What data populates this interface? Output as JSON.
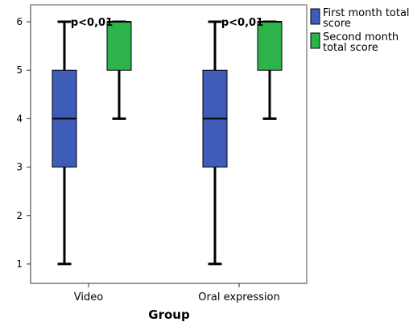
{
  "chart_data": {
    "type": "box",
    "xlabel": "Group",
    "ylabel": "",
    "ylim": [
      0.6,
      6.35
    ],
    "yticks": [
      1,
      2,
      3,
      4,
      5,
      6
    ],
    "categories": [
      "Video",
      "Oral expression"
    ],
    "series": [
      {
        "name": "First month total score",
        "color": "#3f5db8",
        "boxes": [
          {
            "min": 1,
            "q1": 3,
            "median": 4,
            "q3": 5,
            "max": 6
          },
          {
            "min": 1,
            "q1": 3,
            "median": 4,
            "q3": 5,
            "max": 6
          }
        ]
      },
      {
        "name": "Second month total score",
        "color": "#2cb34a",
        "boxes": [
          {
            "min": 4,
            "q1": 5,
            "median": 6,
            "q3": 6,
            "max": 6
          },
          {
            "min": 4,
            "q1": 5,
            "median": 6,
            "q3": 6,
            "max": 6
          }
        ]
      }
    ],
    "annotations": [
      "p<0,01",
      "p<0,01"
    ],
    "legend": {
      "placement": "top-right-outside",
      "lines": [
        [
          "First month total",
          "score"
        ],
        [
          "Second month",
          "total score"
        ]
      ]
    },
    "grid": false
  }
}
